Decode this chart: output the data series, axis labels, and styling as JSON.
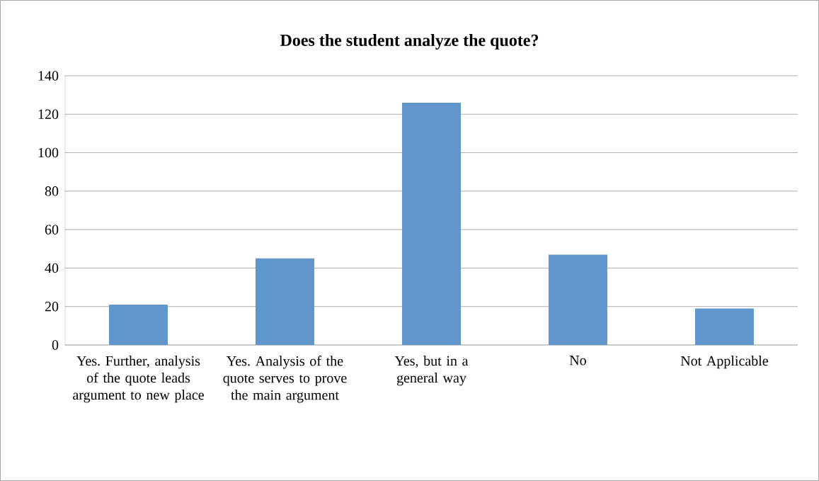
{
  "chart_data": {
    "type": "bar",
    "title": "Does the student analyze the quote?",
    "categories": [
      "Yes. Further, analysis of the quote leads argument to new place",
      "Yes. Analysis of the quote serves to prove the main argument",
      "Yes, but in a general way",
      "No",
      "Not Applicable"
    ],
    "values": [
      21,
      45,
      126,
      47,
      19
    ],
    "color": "#6096cb",
    "ylim": [
      0,
      140
    ],
    "yticks": [
      0,
      20,
      40,
      60,
      80,
      100,
      120,
      140
    ],
    "grid": "y"
  }
}
